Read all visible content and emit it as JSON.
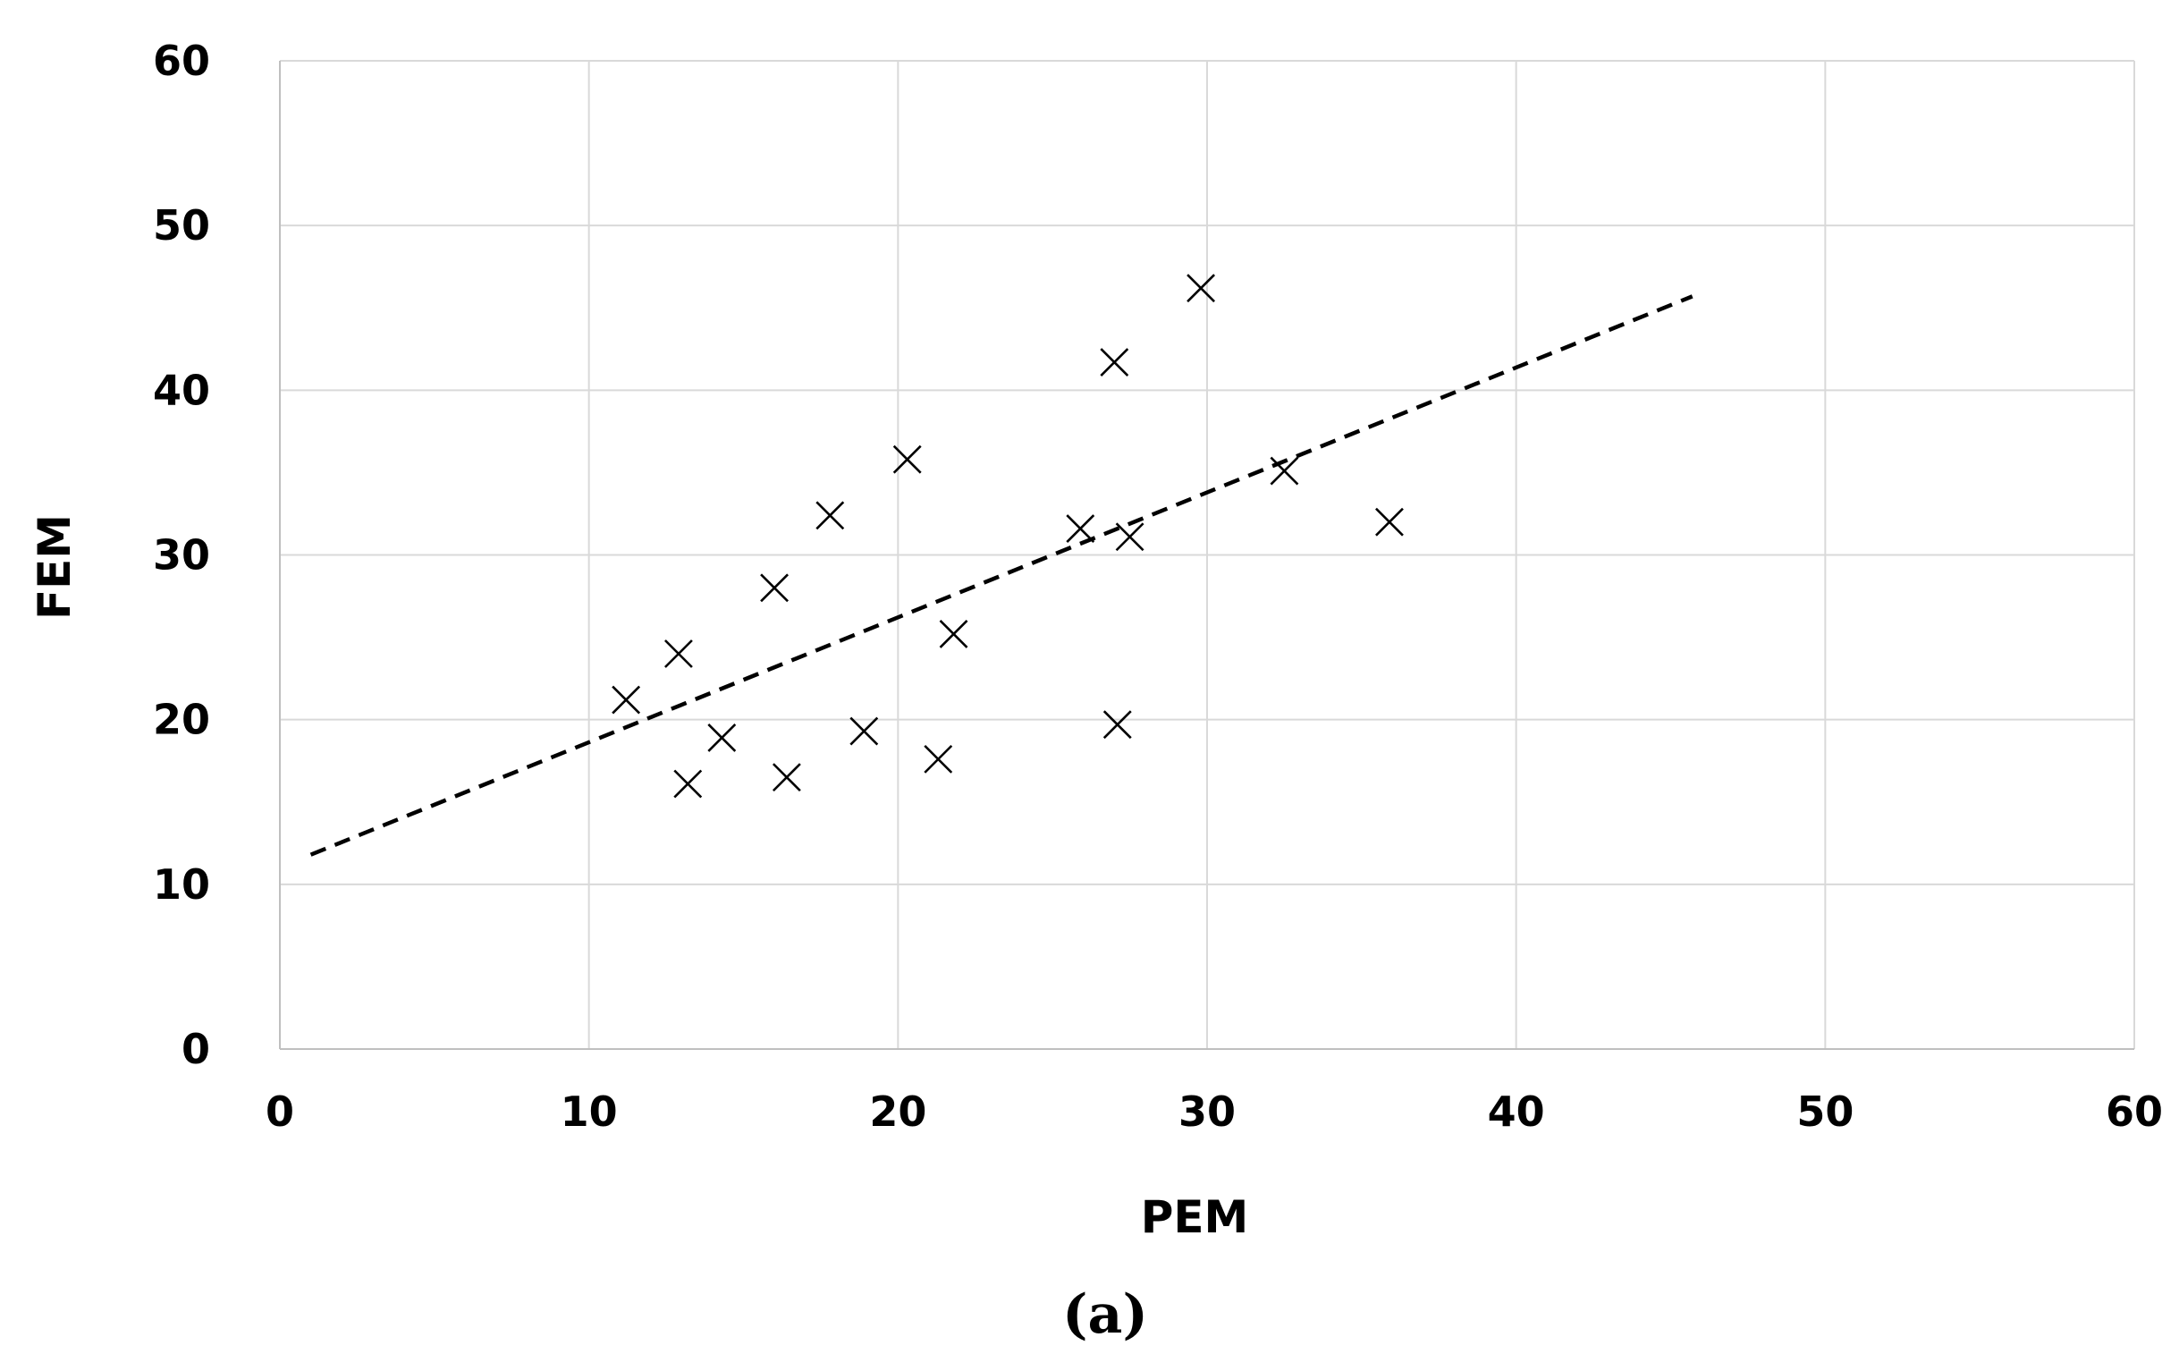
{
  "chart_data": {
    "type": "scatter",
    "title": "",
    "xlabel": "PEM",
    "ylabel": "FEM",
    "caption": "(a)",
    "xlim": [
      0,
      60
    ],
    "ylim": [
      0,
      60
    ],
    "x_ticks": [
      "0",
      "10",
      "20",
      "30",
      "40",
      "50",
      "60"
    ],
    "y_ticks": [
      "0",
      "10",
      "20",
      "30",
      "40",
      "50",
      "60"
    ],
    "grid": true,
    "legend": "none",
    "marker": "x",
    "series": [
      {
        "points": [
          {
            "x": 11.2,
            "y": 21.2
          },
          {
            "x": 12.9,
            "y": 24.0
          },
          {
            "x": 13.2,
            "y": 16.1
          },
          {
            "x": 14.3,
            "y": 18.9
          },
          {
            "x": 16.0,
            "y": 28.0
          },
          {
            "x": 16.4,
            "y": 16.5
          },
          {
            "x": 17.8,
            "y": 32.4
          },
          {
            "x": 18.9,
            "y": 19.3
          },
          {
            "x": 20.3,
            "y": 35.8
          },
          {
            "x": 21.3,
            "y": 17.6
          },
          {
            "x": 21.8,
            "y": 25.2
          },
          {
            "x": 25.9,
            "y": 31.6
          },
          {
            "x": 27.0,
            "y": 41.7
          },
          {
            "x": 27.1,
            "y": 19.7
          },
          {
            "x": 27.5,
            "y": 31.1
          },
          {
            "x": 29.8,
            "y": 46.2
          },
          {
            "x": 32.5,
            "y": 35.1
          },
          {
            "x": 35.9,
            "y": 32.0
          }
        ]
      }
    ],
    "trendline": {
      "style": "dashed",
      "x": [
        1.0,
        45.7
      ],
      "y": [
        11.8,
        45.7
      ]
    },
    "colors": {
      "marker": "#000000",
      "trendline": "#000000",
      "grid": "#d9d9d9",
      "axis": "#bfbfbf"
    }
  }
}
